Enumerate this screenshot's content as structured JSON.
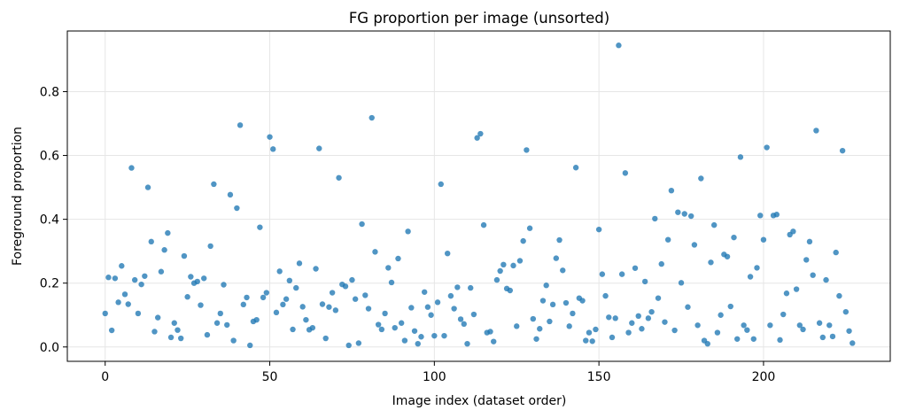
{
  "chart_data": {
    "type": "scatter",
    "title": "FG proportion per image (unsorted)",
    "xlabel": "Image index (dataset order)",
    "ylabel": "Foreground proportion",
    "xlim": [
      -11.5,
      238.5
    ],
    "ylim": [
      -0.045,
      0.99
    ],
    "xticks": [
      0,
      50,
      100,
      150,
      200
    ],
    "yticks": [
      0.0,
      0.2,
      0.4,
      0.6,
      0.8
    ],
    "ytick_labels": [
      "0.0",
      "0.2",
      "0.4",
      "0.6",
      "0.8"
    ],
    "grid": true,
    "marker_color": "#1f77b4",
    "marker_alpha": 0.78,
    "points": [
      [
        0,
        0.105
      ],
      [
        1,
        0.218
      ],
      [
        2,
        0.052
      ],
      [
        3,
        0.215
      ],
      [
        4,
        0.14
      ],
      [
        5,
        0.254
      ],
      [
        6,
        0.165
      ],
      [
        7,
        0.134
      ],
      [
        8,
        0.561
      ],
      [
        9,
        0.21
      ],
      [
        10,
        0.105
      ],
      [
        11,
        0.196
      ],
      [
        12,
        0.222
      ],
      [
        13,
        0.5
      ],
      [
        14,
        0.33
      ],
      [
        15,
        0.048
      ],
      [
        16,
        0.092
      ],
      [
        17,
        0.236
      ],
      [
        18,
        0.304
      ],
      [
        19,
        0.357
      ],
      [
        20,
        0.03
      ],
      [
        21,
        0.075
      ],
      [
        22,
        0.053
      ],
      [
        23,
        0.027
      ],
      [
        24,
        0.285
      ],
      [
        25,
        0.157
      ],
      [
        26,
        0.22
      ],
      [
        27,
        0.2
      ],
      [
        28,
        0.205
      ],
      [
        29,
        0.131
      ],
      [
        30,
        0.215
      ],
      [
        31,
        0.038
      ],
      [
        32,
        0.316
      ],
      [
        33,
        0.51
      ],
      [
        34,
        0.075
      ],
      [
        35,
        0.105
      ],
      [
        36,
        0.195
      ],
      [
        37,
        0.069
      ],
      [
        38,
        0.477
      ],
      [
        39,
        0.02
      ],
      [
        40,
        0.435
      ],
      [
        41,
        0.695
      ],
      [
        42,
        0.133
      ],
      [
        43,
        0.155
      ],
      [
        44,
        0.005
      ],
      [
        45,
        0.08
      ],
      [
        46,
        0.085
      ],
      [
        47,
        0.375
      ],
      [
        48,
        0.155
      ],
      [
        49,
        0.17
      ],
      [
        50,
        0.658
      ],
      [
        51,
        0.62
      ],
      [
        52,
        0.108
      ],
      [
        53,
        0.237
      ],
      [
        54,
        0.133
      ],
      [
        55,
        0.15
      ],
      [
        56,
        0.208
      ],
      [
        57,
        0.055
      ],
      [
        58,
        0.185
      ],
      [
        59,
        0.262
      ],
      [
        60,
        0.126
      ],
      [
        61,
        0.085
      ],
      [
        62,
        0.054
      ],
      [
        63,
        0.06
      ],
      [
        64,
        0.245
      ],
      [
        65,
        0.622
      ],
      [
        66,
        0.134
      ],
      [
        67,
        0.027
      ],
      [
        68,
        0.125
      ],
      [
        69,
        0.17
      ],
      [
        70,
        0.115
      ],
      [
        71,
        0.53
      ],
      [
        72,
        0.196
      ],
      [
        73,
        0.19
      ],
      [
        74,
        0.005
      ],
      [
        75,
        0.21
      ],
      [
        76,
        0.15
      ],
      [
        77,
        0.012
      ],
      [
        78,
        0.385
      ],
      [
        79,
        0.162
      ],
      [
        80,
        0.12
      ],
      [
        81,
        0.718
      ],
      [
        82,
        0.298
      ],
      [
        83,
        0.07
      ],
      [
        84,
        0.055
      ],
      [
        85,
        0.105
      ],
      [
        86,
        0.248
      ],
      [
        87,
        0.202
      ],
      [
        88,
        0.06
      ],
      [
        89,
        0.277
      ],
      [
        90,
        0.075
      ],
      [
        91,
        0.02
      ],
      [
        92,
        0.362
      ],
      [
        93,
        0.123
      ],
      [
        94,
        0.05
      ],
      [
        95,
        0.01
      ],
      [
        96,
        0.032
      ],
      [
        97,
        0.172
      ],
      [
        98,
        0.125
      ],
      [
        99,
        0.1
      ],
      [
        100,
        0.035
      ],
      [
        101,
        0.14
      ],
      [
        102,
        0.51
      ],
      [
        103,
        0.035
      ],
      [
        104,
        0.293
      ],
      [
        105,
        0.16
      ],
      [
        106,
        0.12
      ],
      [
        107,
        0.187
      ],
      [
        108,
        0.087
      ],
      [
        109,
        0.072
      ],
      [
        110,
        0.01
      ],
      [
        111,
        0.185
      ],
      [
        112,
        0.102
      ],
      [
        113,
        0.655
      ],
      [
        114,
        0.668
      ],
      [
        115,
        0.382
      ],
      [
        116,
        0.045
      ],
      [
        117,
        0.048
      ],
      [
        118,
        0.017
      ],
      [
        119,
        0.21
      ],
      [
        120,
        0.238
      ],
      [
        121,
        0.258
      ],
      [
        122,
        0.183
      ],
      [
        123,
        0.177
      ],
      [
        124,
        0.255
      ],
      [
        125,
        0.065
      ],
      [
        126,
        0.27
      ],
      [
        127,
        0.332
      ],
      [
        128,
        0.617
      ],
      [
        129,
        0.372
      ],
      [
        130,
        0.088
      ],
      [
        131,
        0.025
      ],
      [
        132,
        0.057
      ],
      [
        133,
        0.145
      ],
      [
        134,
        0.193
      ],
      [
        135,
        0.08
      ],
      [
        136,
        0.133
      ],
      [
        137,
        0.278
      ],
      [
        138,
        0.335
      ],
      [
        139,
        0.24
      ],
      [
        140,
        0.138
      ],
      [
        141,
        0.065
      ],
      [
        142,
        0.105
      ],
      [
        143,
        0.562
      ],
      [
        144,
        0.153
      ],
      [
        145,
        0.145
      ],
      [
        146,
        0.02
      ],
      [
        147,
        0.045
      ],
      [
        148,
        0.018
      ],
      [
        149,
        0.055
      ],
      [
        150,
        0.368
      ],
      [
        151,
        0.228
      ],
      [
        152,
        0.16
      ],
      [
        153,
        0.093
      ],
      [
        154,
        0.03
      ],
      [
        155,
        0.09
      ],
      [
        156,
        0.945
      ],
      [
        157,
        0.228
      ],
      [
        158,
        0.545
      ],
      [
        159,
        0.045
      ],
      [
        160,
        0.075
      ],
      [
        161,
        0.247
      ],
      [
        162,
        0.097
      ],
      [
        163,
        0.057
      ],
      [
        164,
        0.205
      ],
      [
        165,
        0.09
      ],
      [
        166,
        0.11
      ],
      [
        167,
        0.402
      ],
      [
        168,
        0.153
      ],
      [
        169,
        0.26
      ],
      [
        170,
        0.078
      ],
      [
        171,
        0.336
      ],
      [
        172,
        0.49
      ],
      [
        173,
        0.052
      ],
      [
        174,
        0.422
      ],
      [
        175,
        0.201
      ],
      [
        176,
        0.417
      ],
      [
        177,
        0.125
      ],
      [
        178,
        0.41
      ],
      [
        179,
        0.32
      ],
      [
        180,
        0.068
      ],
      [
        181,
        0.528
      ],
      [
        182,
        0.02
      ],
      [
        183,
        0.01
      ],
      [
        184,
        0.265
      ],
      [
        185,
        0.382
      ],
      [
        186,
        0.045
      ],
      [
        187,
        0.1
      ],
      [
        188,
        0.29
      ],
      [
        189,
        0.283
      ],
      [
        190,
        0.127
      ],
      [
        191,
        0.343
      ],
      [
        192,
        0.025
      ],
      [
        193,
        0.595
      ],
      [
        194,
        0.068
      ],
      [
        195,
        0.053
      ],
      [
        196,
        0.22
      ],
      [
        197,
        0.025
      ],
      [
        198,
        0.248
      ],
      [
        199,
        0.412
      ],
      [
        200,
        0.336
      ],
      [
        201,
        0.625
      ],
      [
        202,
        0.068
      ],
      [
        203,
        0.412
      ],
      [
        204,
        0.415
      ],
      [
        205,
        0.022
      ],
      [
        206,
        0.102
      ],
      [
        207,
        0.168
      ],
      [
        208,
        0.352
      ],
      [
        209,
        0.362
      ],
      [
        210,
        0.181
      ],
      [
        211,
        0.068
      ],
      [
        212,
        0.055
      ],
      [
        213,
        0.273
      ],
      [
        214,
        0.33
      ],
      [
        215,
        0.225
      ],
      [
        216,
        0.678
      ],
      [
        217,
        0.075
      ],
      [
        218,
        0.03
      ],
      [
        219,
        0.21
      ],
      [
        220,
        0.068
      ],
      [
        221,
        0.033
      ],
      [
        222,
        0.296
      ],
      [
        223,
        0.16
      ],
      [
        224,
        0.615
      ],
      [
        225,
        0.11
      ],
      [
        226,
        0.05
      ],
      [
        227,
        0.012
      ]
    ]
  }
}
